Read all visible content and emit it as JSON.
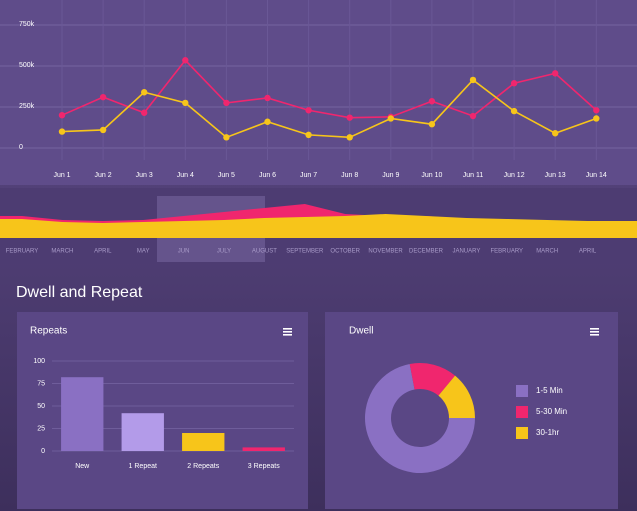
{
  "section_title": "Dwell and Repeat",
  "chart_data": [
    {
      "type": "line",
      "categories": [
        "Jun 1",
        "Jun 2",
        "Jun 3",
        "Jun 4",
        "Jun 5",
        "Jun 6",
        "Jun 7",
        "Jun 8",
        "Jun 9",
        "Jun 10",
        "Jun 11",
        "Jun 12",
        "Jun 13",
        "Jun 14"
      ],
      "series": [
        {
          "color": "#f0266e",
          "values": [
            200000,
            310000,
            215000,
            535000,
            275000,
            305000,
            230000,
            185000,
            190000,
            285000,
            195000,
            395000,
            455000,
            230000
          ]
        },
        {
          "color": "#f7c51a",
          "values": [
            100000,
            110000,
            340000,
            275000,
            65000,
            160000,
            80000,
            65000,
            180000,
            145000,
            415000,
            225000,
            90000,
            180000
          ]
        }
      ],
      "ylim": [
        0,
        750000
      ],
      "yticks": [
        0,
        {
          "value": 250000,
          "label": "250k"
        },
        {
          "value": 500000,
          "label": "500k"
        },
        {
          "value": 750000,
          "label": "750k"
        }
      ],
      "grid": true
    },
    {
      "type": "area",
      "categories": [
        "FEBRUARY",
        "MARCH",
        "APRIL",
        "MAY",
        "JUN",
        "JULY",
        "AUGUST",
        "SEPTEMBER",
        "OCTOBER",
        "NOVEMBER",
        "DECEMBER",
        "JANUARY",
        "FEBRUARY",
        "MARCH",
        "APRIL"
      ],
      "series": [
        {
          "color": "#f0266e",
          "values": [
            22,
            18,
            17,
            18,
            22,
            26,
            30,
            34,
            24,
            22,
            22,
            19,
            18,
            17,
            16
          ]
        },
        {
          "color": "#f7c51a",
          "values": [
            19,
            16,
            15,
            16,
            17,
            18,
            20,
            21,
            22,
            24,
            22,
            20,
            19,
            18,
            17
          ]
        }
      ]
    },
    {
      "type": "bar",
      "title": "Repeats",
      "categories": [
        "New",
        "1 Repeat",
        "2 Repeats",
        "3 Repeats"
      ],
      "values": [
        82,
        42,
        20,
        4
      ],
      "colors": [
        "#8a70c3",
        "#b39be9",
        "#f7c51a",
        "#f0266e"
      ],
      "ylim": [
        0,
        100
      ],
      "yticks": [
        0,
        25,
        50,
        75,
        100
      ],
      "grid": true
    },
    {
      "type": "donut",
      "title": "Dwell",
      "categories": [
        "1-5 Min",
        "5-30 Min",
        "30-1hr"
      ],
      "values": [
        72,
        14,
        14
      ],
      "colors": [
        "#8a70c3",
        "#f0266e",
        "#f7c51a"
      ],
      "legend": "right"
    }
  ]
}
